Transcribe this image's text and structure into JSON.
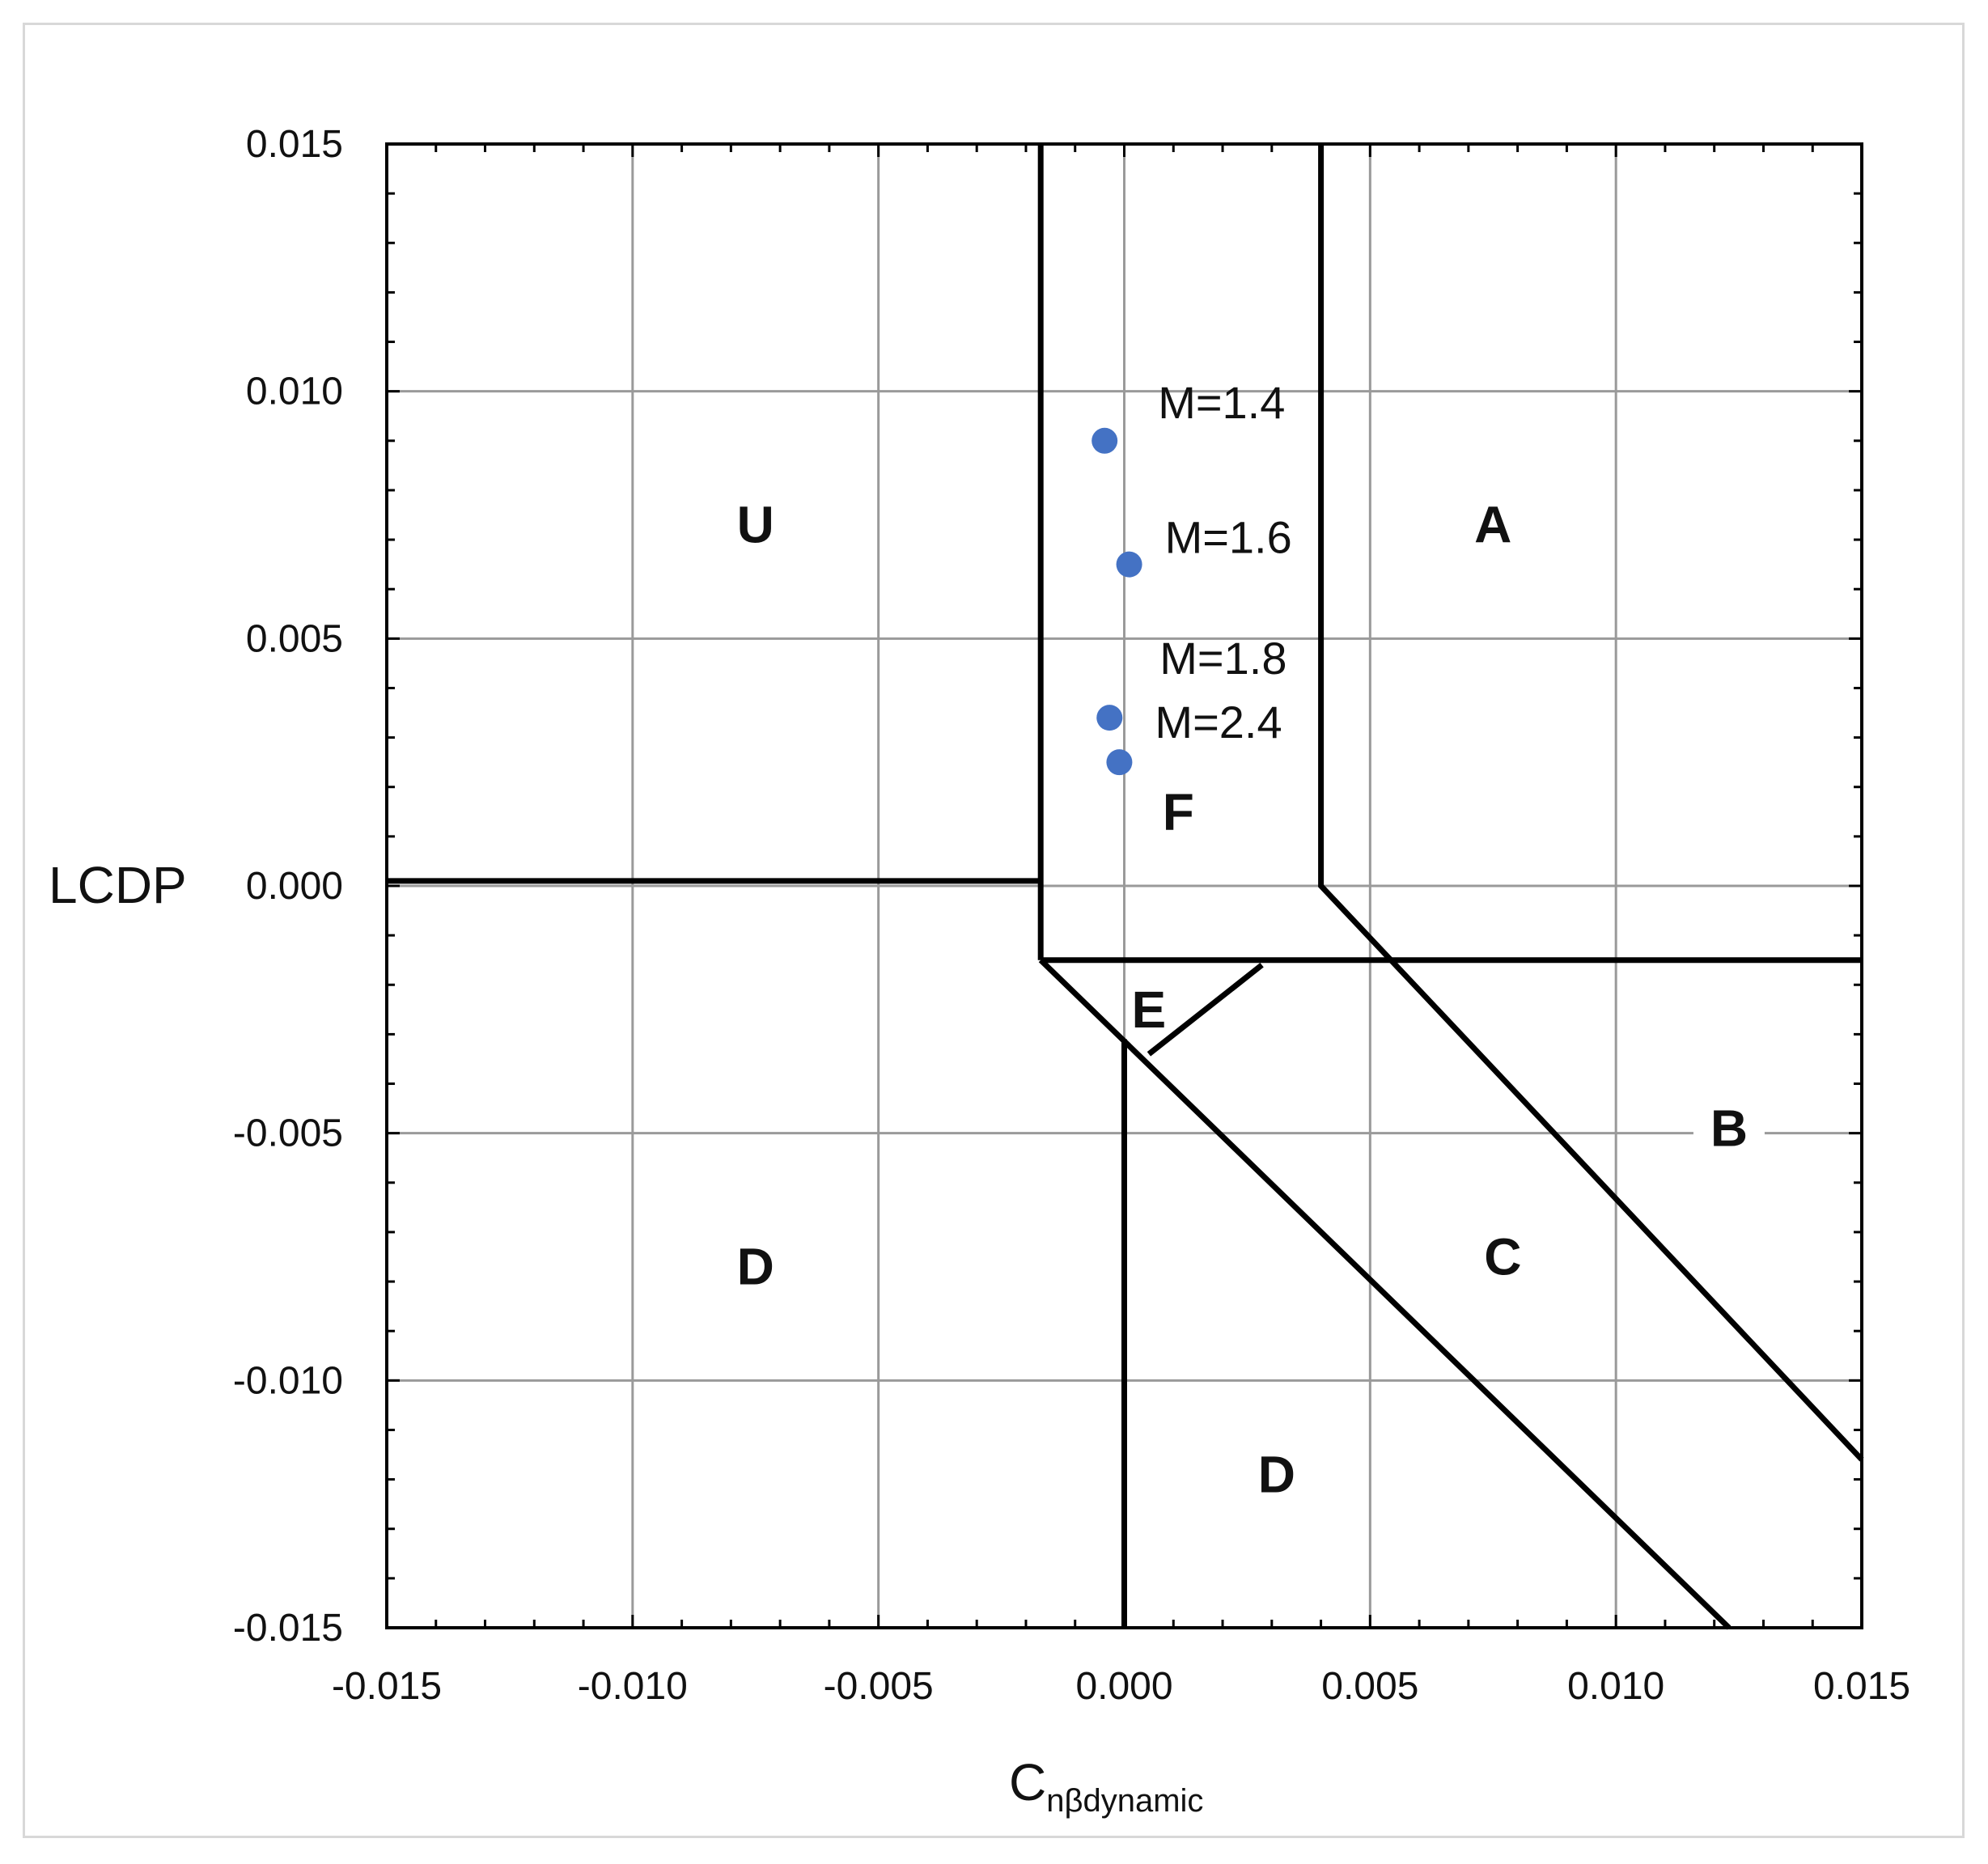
{
  "chart_data": {
    "type": "scatter",
    "xlabel": {
      "main": "C",
      "subscript": "nβdynamic"
    },
    "ylabel": "LCDP",
    "xlim": [
      -0.015,
      0.015
    ],
    "ylim": [
      -0.015,
      0.015
    ],
    "x_ticks": [
      "-0.015",
      "-0.010",
      "-0.005",
      "0.000",
      "0.005",
      "0.010",
      "0.015"
    ],
    "y_ticks": [
      "0.015",
      "0.010",
      "0.005",
      "0.000",
      "-0.005",
      "-0.010",
      "-0.015"
    ],
    "x_tick_values": [
      -0.015,
      -0.01,
      -0.005,
      0.0,
      0.005,
      0.01,
      0.015
    ],
    "y_tick_values": [
      0.015,
      0.01,
      0.005,
      0.0,
      -0.005,
      -0.01,
      -0.015
    ],
    "grid": true,
    "series": [
      {
        "color": "#4472c4",
        "points": [
          {
            "x": -0.0004,
            "y": 0.009,
            "label": "M=1.4"
          },
          {
            "x": 0.0001,
            "y": 0.0065,
            "label": "M=1.6"
          },
          {
            "x": -0.0003,
            "y": 0.0034,
            "label": "M=1.8"
          },
          {
            "x": -0.0001,
            "y": 0.0025,
            "label": "M=2.4"
          }
        ]
      }
    ],
    "boundaries": [
      {
        "name": "U-F divider",
        "points": [
          [
            -0.0017,
            0.015
          ],
          [
            -0.0017,
            -0.0015
          ]
        ]
      },
      {
        "name": "zero LCDP line",
        "points": [
          [
            -0.015,
            0.0001
          ],
          [
            -0.0017,
            0.0001
          ]
        ]
      },
      {
        "name": "F-A divider",
        "points": [
          [
            0.004,
            0.015
          ],
          [
            0.004,
            0.0
          ],
          [
            0.015,
            -0.0116
          ]
        ]
      },
      {
        "name": "lower horizontal",
        "points": [
          [
            -0.0017,
            -0.0015
          ],
          [
            0.015,
            -0.0015
          ]
        ]
      },
      {
        "name": "C-D divider",
        "points": [
          [
            -0.0017,
            -0.0015
          ],
          [
            0.0123,
            -0.015
          ]
        ]
      },
      {
        "name": "E triangle",
        "points": [
          [
            0.0028,
            -0.0016
          ],
          [
            0.0005,
            -0.0034
          ]
        ]
      },
      {
        "name": "D vertical",
        "points": [
          [
            0.0,
            -0.0031
          ],
          [
            0.0,
            -0.015
          ]
        ]
      }
    ],
    "regions": [
      {
        "label": "U",
        "x": -0.0075,
        "y": 0.0073
      },
      {
        "label": "A",
        "x": 0.0075,
        "y": 0.0073
      },
      {
        "label": "F",
        "x": 0.0011,
        "y": 0.0015
      },
      {
        "label": "E",
        "x": 0.0005,
        "y": -0.0025
      },
      {
        "label": "B",
        "x": 0.0123,
        "y": -0.0049
      },
      {
        "label": "C",
        "x": 0.0077,
        "y": -0.0075
      },
      {
        "label": "D",
        "x": -0.0075,
        "y": -0.0077
      },
      {
        "label": "D",
        "x": 0.0031,
        "y": -0.0119
      }
    ],
    "region_label_B_gap": true
  }
}
